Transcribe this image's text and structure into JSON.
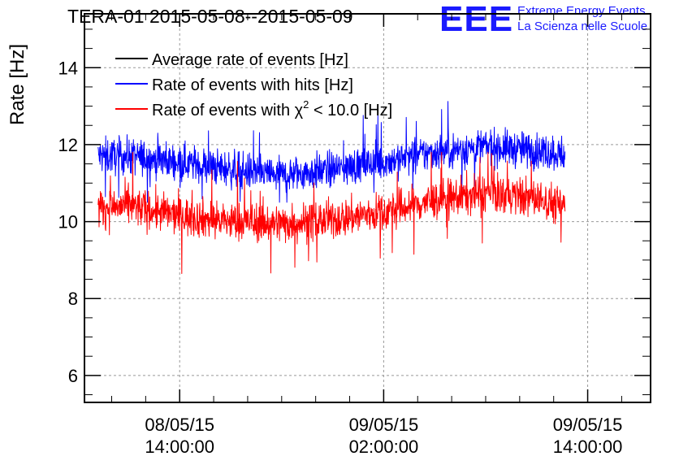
{
  "header": {
    "title": "TERA-01 2015-05-08--2015-05-09",
    "logo_text": "EEE",
    "org_line1": "Extreme Energy Events",
    "org_line2": "La Scienza nelle Scuole"
  },
  "colors": {
    "average": "#000000",
    "hits": "#0000ff",
    "chi2": "#ff0000",
    "logo": "#1a1aff"
  },
  "chart_data": {
    "type": "line",
    "title": "TERA-01 2015-05-08--2015-05-09",
    "ylabel": "Rate [Hz]",
    "xlabel": "",
    "ylim": [
      5.3,
      15.4
    ],
    "xlim_hours": [
      -5.6,
      27.7
    ],
    "yticks": [
      "6",
      "8",
      "10",
      "12",
      "14"
    ],
    "xticks": [
      {
        "date": "08/05/15",
        "time": "14:00:00"
      },
      {
        "date": "09/05/15",
        "time": "02:00:00"
      },
      {
        "date": "09/05/15",
        "time": "14:00:00"
      }
    ],
    "grid": true,
    "legend_position": "top-left",
    "legend": [
      {
        "label": "Average rate of events [Hz]",
        "color": "#000000"
      },
      {
        "label": "Rate of events with hits [Hz]",
        "color": "#0000ff"
      },
      {
        "label_pre": "Rate of events with ",
        "symbol": "χ",
        "sup": "2",
        "label_post": " < 10.0 [Hz]",
        "color": "#ff0000"
      }
    ],
    "x_range_of_data": [
      "2015-05-08 09:12",
      "2015-05-09 12:40"
    ],
    "series": [
      {
        "name": "Rate of events with hits [Hz]",
        "color": "#0000ff",
        "baseline_points": [
          {
            "t": "2015-05-08 09:12",
            "v": 11.7
          },
          {
            "t": "2015-05-08 11:00",
            "v": 11.7
          },
          {
            "t": "2015-05-08 14:00",
            "v": 11.55
          },
          {
            "t": "2015-05-08 17:00",
            "v": 11.35
          },
          {
            "t": "2015-05-08 20:00",
            "v": 11.2
          },
          {
            "t": "2015-05-08 23:00",
            "v": 11.35
          },
          {
            "t": "2015-05-09 02:00",
            "v": 11.55
          },
          {
            "t": "2015-05-09 05:00",
            "v": 11.8
          },
          {
            "t": "2015-05-09 08:00",
            "v": 11.95
          },
          {
            "t": "2015-05-09 11:00",
            "v": 11.85
          },
          {
            "t": "2015-05-09 12:40",
            "v": 11.75
          }
        ],
        "noise_amplitude": 0.42,
        "min": 10.5,
        "max": 13.3
      },
      {
        "name": "Rate of events with χ2 < 10.0 [Hz]",
        "color": "#ff0000",
        "baseline_points": [
          {
            "t": "2015-05-08 09:12",
            "v": 10.35
          },
          {
            "t": "2015-05-08 11:00",
            "v": 10.4
          },
          {
            "t": "2015-05-08 14:00",
            "v": 10.15
          },
          {
            "t": "2015-05-08 17:00",
            "v": 10.0
          },
          {
            "t": "2015-05-08 20:00",
            "v": 9.95
          },
          {
            "t": "2015-05-08 23:00",
            "v": 10.05
          },
          {
            "t": "2015-05-09 02:00",
            "v": 10.25
          },
          {
            "t": "2015-05-09 05:00",
            "v": 10.55
          },
          {
            "t": "2015-05-09 08:00",
            "v": 10.75
          },
          {
            "t": "2015-05-09 11:00",
            "v": 10.6
          },
          {
            "t": "2015-05-09 12:40",
            "v": 10.4
          }
        ],
        "noise_amplitude": 0.45,
        "min": 8.65,
        "max": 11.8
      }
    ]
  }
}
